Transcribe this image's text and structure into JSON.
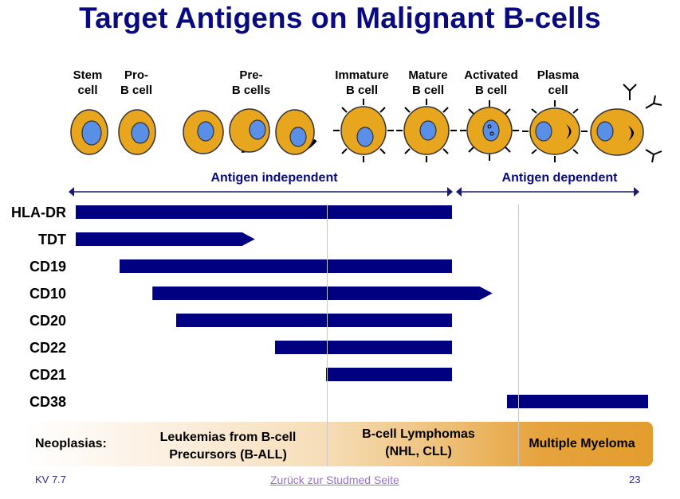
{
  "title": "Target Antigens on Malignant B-cells",
  "stages": [
    "Stem\ncell",
    "Pro-\nB cell",
    "Pre-\nB cells",
    "Immature\nB cell",
    "Mature\nB cell",
    "Activated\nB cell",
    "Plasma\ncell"
  ],
  "phases": {
    "independent": "Antigen independent",
    "dependent": "Antigen dependent"
  },
  "markers": [
    {
      "label": "HLA-DR",
      "start": 0.0,
      "end": 0.658,
      "tip": "flat"
    },
    {
      "label": "TDT",
      "start": 0.0,
      "end": 0.313,
      "tip": "arrow"
    },
    {
      "label": "CD19",
      "start": 0.077,
      "end": 0.658,
      "tip": "flat"
    },
    {
      "label": "CD10",
      "start": 0.134,
      "end": 0.728,
      "tip": "arrow"
    },
    {
      "label": "CD20",
      "start": 0.176,
      "end": 0.658,
      "tip": "flat"
    },
    {
      "label": "CD22",
      "start": 0.348,
      "end": 0.658,
      "tip": "flat"
    },
    {
      "label": "CD21",
      "start": 0.438,
      "end": 0.658,
      "tip": "flat"
    },
    {
      "label": "CD38",
      "start": 0.754,
      "end": 1.0,
      "tip": "flat"
    }
  ],
  "neoplasias": {
    "label": "Neoplasias:",
    "all": "Leukemias from B-cell\nPrecursors (B-ALL)",
    "lymphoma": "B-cell Lymphomas\n(NHL, CLL)",
    "myeloma": "Multiple Myeloma"
  },
  "footer": {
    "course": "KV 7.7",
    "link": "Zurück zur Studmed Seite",
    "page": "23"
  },
  "colors": {
    "bar": "#000080",
    "title": "#0a0a80",
    "cell_fill": "#e8a51e",
    "nucleus_fill": "#5a8fe8"
  }
}
